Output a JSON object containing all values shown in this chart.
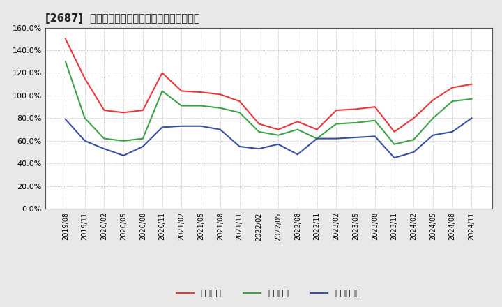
{
  "title": "[2687]  流動比率、当座比率、現預金比率の推移",
  "dates": [
    "2019/08",
    "2019/11",
    "2020/02",
    "2020/05",
    "2020/08",
    "2020/11",
    "2021/02",
    "2021/05",
    "2021/08",
    "2021/11",
    "2022/02",
    "2022/05",
    "2022/08",
    "2022/11",
    "2023/02",
    "2023/05",
    "2023/08",
    "2023/11",
    "2024/02",
    "2024/05",
    "2024/08",
    "2024/11"
  ],
  "ryudo": [
    150,
    115,
    87,
    85,
    87,
    120,
    104,
    103,
    101,
    95,
    75,
    70,
    77,
    70,
    87,
    88,
    90,
    68,
    80,
    96,
    107,
    110
  ],
  "toza": [
    130,
    80,
    62,
    60,
    62,
    104,
    91,
    91,
    89,
    85,
    68,
    65,
    70,
    62,
    75,
    76,
    78,
    57,
    61,
    80,
    95,
    97
  ],
  "genyo": [
    79,
    60,
    53,
    47,
    55,
    72,
    73,
    73,
    70,
    55,
    53,
    57,
    48,
    62,
    62,
    63,
    64,
    45,
    50,
    65,
    68,
    80
  ],
  "line_color_ryudo": "#e8383d",
  "line_color_toza": "#3ea147",
  "line_color_genyo": "#3850a0",
  "legend_labels": [
    "流動比率",
    "当座比率",
    "現預金比率"
  ],
  "ylim": [
    0,
    160
  ],
  "yticks": [
    0,
    20,
    40,
    60,
    80,
    100,
    120,
    140,
    160
  ],
  "grid_color": "#aaaaaa",
  "bg_color": "#e8e8e8",
  "plot_bg_color": "#ffffff"
}
